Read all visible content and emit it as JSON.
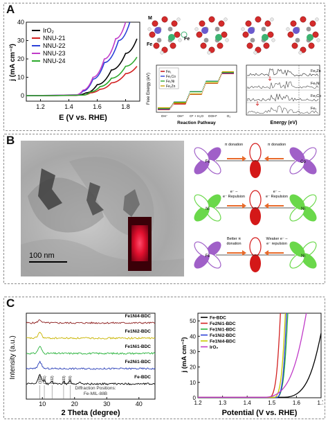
{
  "panels": {
    "a": "A",
    "b": "B",
    "c": "C"
  },
  "panel_a": {
    "atoms": {
      "m": "M",
      "fe": "Fe",
      "fe2": "Fe"
    },
    "free_energy": {
      "ylabel": "Free Energy (eV)",
      "xlabel": "Reaction Pathway",
      "steps": [
        "OH⁻",
        "OH*",
        "O* + H₂O",
        "OOH*",
        "O₂"
      ],
      "legend": [
        "Fe₁",
        "Fe₁Co",
        "Fe₁Ni",
        "Fe₁Zn"
      ]
    },
    "dos": {
      "xlabel": "Energy (eV)",
      "labels": [
        "Fe₁Zn",
        "Fe₁Ni",
        "Fe₁Co",
        "Fe₁"
      ],
      "colors": [
        "#222222",
        "#444444",
        "#333333",
        "#555555"
      ]
    }
  },
  "panel_b": {
    "scale_bar": "100 nm",
    "orbital_rows": [
      {
        "left_text": "π donation",
        "right_text": "π donation",
        "left_metal": "Fe",
        "right_metal": "Co",
        "left_color": "#a060c8",
        "right_color": "#a060c8"
      },
      {
        "left_text": "e⁻ – e⁻ Repulsion",
        "right_text": "e⁻ – e⁻ Repulsion",
        "left_metal": "Ni",
        "right_metal": "Ni",
        "left_color": "#6ad84a",
        "right_color": "#6ad84a"
      },
      {
        "left_text": "Better π donation",
        "right_text": "Weaker e⁻ – e⁻ repulsion",
        "left_metal": "Fe",
        "right_metal": "Ni",
        "left_color": "#a060c8",
        "right_color": "#6ad84a"
      }
    ]
  },
  "chart_data": [
    {
      "type": "line",
      "title": "",
      "xlabel": "E (V vs. RHE)",
      "ylabel": "j (mA cm⁻²)",
      "xlim": [
        1.1,
        1.9
      ],
      "ylim": [
        -3,
        40
      ],
      "xticks": [
        1.2,
        1.4,
        1.6,
        1.8
      ],
      "yticks": [
        0,
        10,
        20,
        30,
        40
      ],
      "legend_position": "top-left",
      "series": [
        {
          "name": "IrO₂",
          "color": "#000000",
          "x": [
            1.1,
            1.45,
            1.52,
            1.6,
            1.7,
            1.8,
            1.88
          ],
          "y": [
            0,
            0.2,
            1.5,
            6,
            14,
            23,
            31
          ]
        },
        {
          "name": "NNU-21",
          "color": "#d22020",
          "x": [
            1.1,
            1.5,
            1.55,
            1.62,
            1.7,
            1.8,
            1.88
          ],
          "y": [
            0,
            0.3,
            1.5,
            3.5,
            7,
            12,
            16
          ]
        },
        {
          "name": "NNU-22",
          "color": "#2a3fd8",
          "x": [
            1.1,
            1.45,
            1.5,
            1.57,
            1.65,
            1.75,
            1.83
          ],
          "y": [
            0,
            0.4,
            2.5,
            9,
            18,
            30,
            40
          ]
        },
        {
          "name": "NNU-23",
          "color": "#c03ac8",
          "x": [
            1.1,
            1.45,
            1.5,
            1.57,
            1.65,
            1.73,
            1.8
          ],
          "y": [
            0,
            0.4,
            3,
            10,
            20,
            31,
            40
          ]
        },
        {
          "name": "NNU-24",
          "color": "#2aa82a",
          "x": [
            1.1,
            1.5,
            1.55,
            1.62,
            1.7,
            1.8,
            1.88
          ],
          "y": [
            0,
            0.3,
            2,
            5,
            9.5,
            16,
            21
          ]
        }
      ]
    },
    {
      "type": "line",
      "title": "",
      "xlabel": "2 Theta (degree)",
      "ylabel": "Intensity (a.u.)",
      "xlim": [
        5,
        45
      ],
      "xticks": [
        10,
        20,
        30,
        40
      ],
      "series": [
        {
          "name": "Fe1Ni4-BDC",
          "color": "#8b1a1a",
          "peak": 9.2,
          "peak_height": 0.3,
          "offset": 5
        },
        {
          "name": "Fe1Ni2-BDC",
          "color": "#c8b400",
          "peak": 9.2,
          "peak_height": 0.6,
          "offset": 4
        },
        {
          "name": "Fe1Ni1-BDC",
          "color": "#27b23a",
          "peak": 9.2,
          "peak_height": 0.7,
          "offset": 3
        },
        {
          "name": "Fe2Ni1-BDC",
          "color": "#2a3fb8",
          "peak": 9.2,
          "peak_height": 0.7,
          "offset": 2
        },
        {
          "name": "Fe-BDC",
          "color": "#000000",
          "peak": 9.2,
          "peak_height": 0.9,
          "offset": 1
        }
      ],
      "reference_peaks": [
        {
          "label": "(100)",
          "x": 9.2
        },
        {
          "label": "(101)",
          "x": 10.6
        },
        {
          "label": "(102)",
          "x": 13.0
        },
        {
          "label": "(103)",
          "x": 16.6
        },
        {
          "label": "(200)",
          "x": 18.6
        }
      ],
      "annotation": "Diffraction Positions: Fe-MIL-88B"
    },
    {
      "type": "line",
      "title": "",
      "xlabel": "Potential (V vs. RHE)",
      "ylabel": "j (mA cm⁻²)",
      "xlim": [
        1.2,
        1.7
      ],
      "ylim": [
        0,
        55
      ],
      "xticks": [
        1.2,
        1.3,
        1.4,
        1.5,
        1.6,
        1.7
      ],
      "xtick_labels": [
        "1.2",
        "1.3",
        "1.4",
        "1.5",
        "1.6",
        "1.7"
      ],
      "yticks": [
        0,
        10,
        20,
        30,
        40,
        50
      ],
      "legend_position": "top-left",
      "series": [
        {
          "name": "Fe-BDC",
          "color": "#000000",
          "onset": 1.55,
          "end": 1.72,
          "end_j": 42
        },
        {
          "name": "Fe2Ni1-BDC",
          "color": "#d22020",
          "onset": 1.49,
          "end": 1.535,
          "end_j": 55
        },
        {
          "name": "Fe1Ni1-BDC",
          "color": "#27b23a",
          "onset": 1.52,
          "end": 1.565,
          "end_j": 55
        },
        {
          "name": "Fe1Ni2-BDC",
          "color": "#2a3fd8",
          "onset": 1.52,
          "end": 1.56,
          "end_j": 55
        },
        {
          "name": "Fe1Ni4-BDC",
          "color": "#c8c800",
          "onset": 1.51,
          "end": 1.555,
          "end_j": 55
        },
        {
          "name": "IrO₂",
          "color": "#c03ac8",
          "onset": 1.47,
          "end": 1.64,
          "end_j": 55
        }
      ]
    }
  ]
}
